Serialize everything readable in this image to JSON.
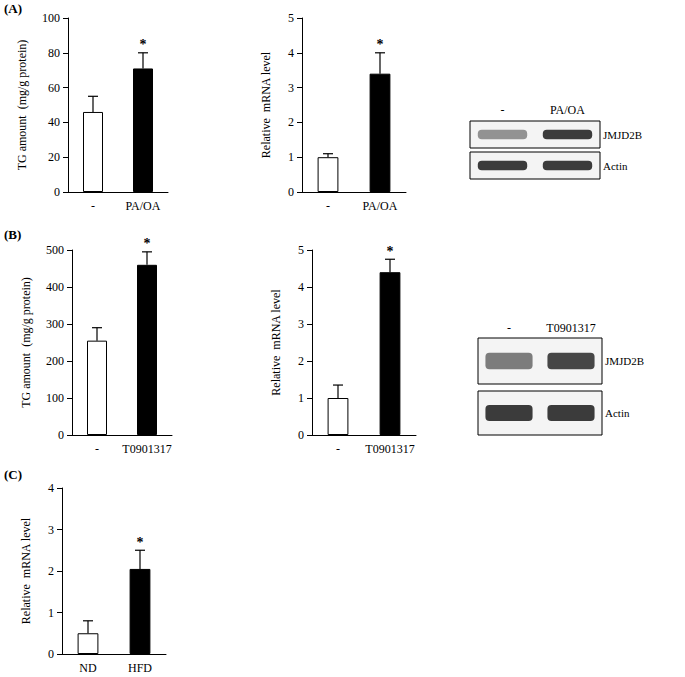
{
  "chart_data": [
    {
      "type": "bar",
      "categories": [
        "-",
        "PA/OA"
      ],
      "values": [
        46,
        71
      ],
      "errors": [
        9,
        9
      ],
      "colors": [
        "#ffffff",
        "#000000"
      ],
      "ylabel": "TG amount  (mg/g protein)",
      "ylim": [
        0,
        100
      ],
      "yticks": [
        0,
        20,
        40,
        60,
        80,
        100
      ],
      "annotations": [
        {
          "category": "PA/OA",
          "text": "*"
        }
      ]
    },
    {
      "type": "bar",
      "categories": [
        "-",
        "PA/OA"
      ],
      "values": [
        1.0,
        3.4
      ],
      "errors": [
        0.1,
        0.6
      ],
      "colors": [
        "#ffffff",
        "#000000"
      ],
      "ylabel": "Relative  mRNA level",
      "ylim": [
        0,
        5
      ],
      "yticks": [
        0,
        1,
        2,
        3,
        4,
        5
      ],
      "annotations": [
        {
          "category": "PA/OA",
          "text": "*"
        }
      ]
    },
    {
      "type": "bar",
      "categories": [
        "-",
        "T0901317"
      ],
      "values": [
        255,
        460
      ],
      "errors": [
        35,
        35
      ],
      "colors": [
        "#ffffff",
        "#000000"
      ],
      "ylabel": "TG amount  (mg/g protein)",
      "ylim": [
        0,
        500
      ],
      "yticks": [
        0,
        100,
        200,
        300,
        400,
        500
      ],
      "annotations": [
        {
          "category": "T0901317",
          "text": "*"
        }
      ]
    },
    {
      "type": "bar",
      "categories": [
        "-",
        "T0901317"
      ],
      "values": [
        1.0,
        4.4
      ],
      "errors": [
        0.35,
        0.35
      ],
      "colors": [
        "#ffffff",
        "#000000"
      ],
      "ylabel": "Relative  mRNA level",
      "ylim": [
        0,
        5
      ],
      "yticks": [
        0,
        1,
        2,
        3,
        4,
        5
      ],
      "annotations": [
        {
          "category": "T0901317",
          "text": "*"
        }
      ]
    },
    {
      "type": "bar",
      "categories": [
        "ND",
        "HFD"
      ],
      "values": [
        0.5,
        2.05
      ],
      "errors": [
        0.3,
        0.45
      ],
      "colors": [
        "#ffffff",
        "#000000"
      ],
      "ylabel": "Relative  mRNA level",
      "ylim": [
        0,
        4
      ],
      "yticks": [
        0,
        1,
        2,
        3,
        4
      ],
      "annotations": [
        {
          "category": "HFD",
          "text": "*"
        }
      ]
    }
  ],
  "panels": [
    "(A)",
    "(B)",
    "(C)"
  ],
  "blots": [
    {
      "lanes": [
        "-",
        "PA/OA"
      ],
      "rows": [
        "JMJD2B",
        "Actin"
      ]
    },
    {
      "lanes": [
        "-",
        "T0901317"
      ],
      "rows": [
        "JMJD2B",
        "Actin"
      ]
    }
  ]
}
